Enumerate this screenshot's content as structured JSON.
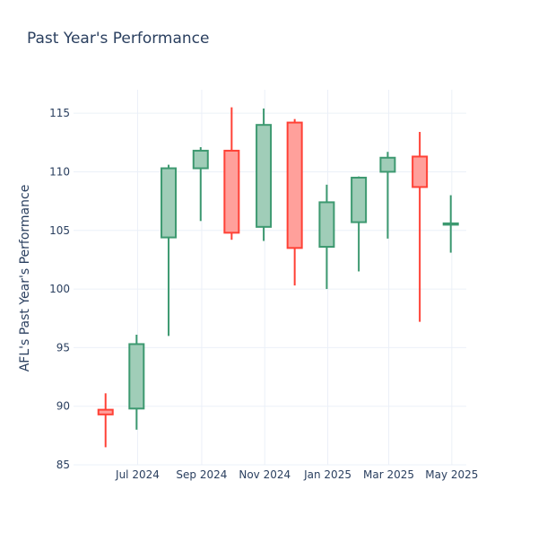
{
  "chart_data": {
    "type": "candlestick",
    "title": "Past Year's Performance",
    "xlabel": "",
    "ylabel": "AFL's Past Year's Performance",
    "ylim": [
      85,
      117
    ],
    "yticks": [
      85,
      90,
      95,
      100,
      105,
      110,
      115
    ],
    "xticks": [
      "Jul 2024",
      "Sep 2024",
      "Nov 2024",
      "Jan 2025",
      "Mar 2025",
      "May 2025"
    ],
    "grid": true,
    "legend": "none",
    "colors": {
      "up": "#3d9970",
      "up_fill": "#a0cdb8",
      "down": "#ff4136",
      "down_fill": "#ffa09b",
      "grid": "#ebf0f8",
      "text": "#2a3f5f"
    },
    "candles": [
      {
        "date": "2024-05-31",
        "open": 89.7,
        "high": 91.1,
        "low": 86.5,
        "close": 89.3
      },
      {
        "date": "2024-06-30",
        "open": 89.8,
        "high": 96.1,
        "low": 88.0,
        "close": 95.3
      },
      {
        "date": "2024-07-31",
        "open": 104.4,
        "high": 110.6,
        "low": 96.0,
        "close": 110.3
      },
      {
        "date": "2024-08-31",
        "open": 110.3,
        "high": 112.1,
        "low": 105.8,
        "close": 111.8
      },
      {
        "date": "2024-09-30",
        "open": 111.8,
        "high": 115.5,
        "low": 104.2,
        "close": 104.8
      },
      {
        "date": "2024-10-31",
        "open": 105.3,
        "high": 115.4,
        "low": 104.1,
        "close": 114.0
      },
      {
        "date": "2024-11-30",
        "open": 114.2,
        "high": 114.5,
        "low": 100.3,
        "close": 103.5
      },
      {
        "date": "2024-12-31",
        "open": 103.6,
        "high": 108.9,
        "low": 100.0,
        "close": 107.4
      },
      {
        "date": "2025-01-31",
        "open": 105.7,
        "high": 109.6,
        "low": 101.5,
        "close": 109.5
      },
      {
        "date": "2025-02-28",
        "open": 110.0,
        "high": 111.7,
        "low": 104.3,
        "close": 111.2
      },
      {
        "date": "2025-03-31",
        "open": 111.3,
        "high": 113.4,
        "low": 97.2,
        "close": 108.7
      },
      {
        "date": "2025-04-30",
        "open": 105.5,
        "high": 108.0,
        "low": 103.1,
        "close": 105.6
      }
    ]
  }
}
